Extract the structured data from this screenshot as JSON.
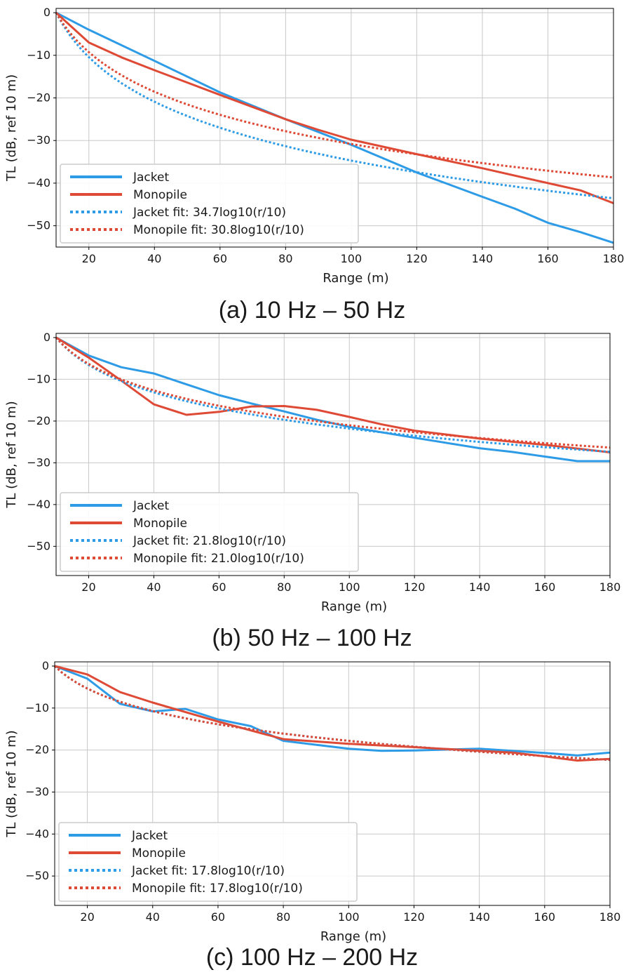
{
  "colors": {
    "jacket": "#2e9be6",
    "monopile": "#de4a35",
    "grid": "#c8c8c8",
    "axes": "#000000"
  },
  "chart_data": [
    {
      "type": "line",
      "caption": "(a) 10 Hz – 50 Hz",
      "xlabel": "Range (m)",
      "ylabel": "TL (dB, ref 10 m)",
      "xlim": [
        10,
        180
      ],
      "ylim": [
        -55,
        1
      ],
      "xticks": [
        20,
        40,
        60,
        80,
        100,
        120,
        140,
        160,
        180
      ],
      "yticks": [
        0,
        -10,
        -20,
        -30,
        -40,
        -50
      ],
      "grid": true,
      "legend_position": "lower-left",
      "series": [
        {
          "name": "Jacket",
          "style": "solid",
          "color": "#2e9be6",
          "x": [
            10,
            20,
            40,
            60,
            80,
            100,
            120,
            140,
            150,
            160,
            170,
            180
          ],
          "y": [
            0,
            -4,
            -11.3,
            -18.7,
            -25,
            -31,
            -37.5,
            -43.2,
            -46,
            -49.3,
            -51.5,
            -54
          ]
        },
        {
          "name": "Monopile",
          "style": "solid",
          "color": "#de4a35",
          "x": [
            10,
            20,
            30,
            40,
            60,
            80,
            90,
            100,
            120,
            140,
            160,
            170,
            180
          ],
          "y": [
            0,
            -7,
            -10.5,
            -13.5,
            -19.3,
            -25,
            -27.5,
            -29.8,
            -33.2,
            -36.5,
            -40,
            -41.7,
            -44.7
          ]
        },
        {
          "name": "Jacket fit: 34.7log10(r/10)",
          "style": "dotted",
          "color": "#2e9be6",
          "coefficient": 34.7
        },
        {
          "name": "Monopile fit: 30.8log10(r/10)",
          "style": "dotted",
          "color": "#de4a35",
          "coefficient": 30.8
        }
      ]
    },
    {
      "type": "line",
      "caption": "(b) 50 Hz – 100 Hz",
      "xlabel": "Range (m)",
      "ylabel": "TL (dB, ref 10 m)",
      "xlim": [
        10,
        180
      ],
      "ylim": [
        -57,
        1
      ],
      "xticks": [
        20,
        40,
        60,
        80,
        100,
        120,
        140,
        160,
        180
      ],
      "yticks": [
        0,
        -10,
        -20,
        -30,
        -40,
        -50
      ],
      "grid": true,
      "legend_position": "lower-left",
      "series": [
        {
          "name": "Jacket",
          "style": "solid",
          "color": "#2e9be6",
          "x": [
            10,
            20,
            30,
            40,
            50,
            60,
            70,
            80,
            90,
            100,
            120,
            140,
            150,
            160,
            170,
            180
          ],
          "y": [
            0,
            -4.3,
            -7.1,
            -8.6,
            -11.2,
            -13.8,
            -15.8,
            -17.7,
            -19.7,
            -21.4,
            -24,
            -26.5,
            -27.4,
            -28.5,
            -29.6,
            -29.6
          ]
        },
        {
          "name": "Monopile",
          "style": "solid",
          "color": "#de4a35",
          "x": [
            10,
            20,
            30,
            40,
            50,
            60,
            70,
            80,
            90,
            100,
            110,
            120,
            140,
            160,
            180
          ],
          "y": [
            0,
            -4.8,
            -10.3,
            -16,
            -18.5,
            -17.8,
            -16.5,
            -16.4,
            -17.3,
            -19,
            -20.8,
            -22.3,
            -24.2,
            -25.7,
            -27.5
          ]
        },
        {
          "name": "Jacket fit: 21.8log10(r/10)",
          "style": "dotted",
          "color": "#2e9be6",
          "coefficient": 21.8
        },
        {
          "name": "Monopile fit: 21.0log10(r/10)",
          "style": "dotted",
          "color": "#de4a35",
          "coefficient": 21.0
        }
      ]
    },
    {
      "type": "line",
      "caption": "(c) 100 Hz – 200 Hz",
      "xlabel": "Range (m)",
      "ylabel": "TL (dB, ref 10 m)",
      "xlim": [
        10,
        180
      ],
      "ylim": [
        -57,
        1
      ],
      "xticks": [
        20,
        40,
        60,
        80,
        100,
        120,
        140,
        160,
        180
      ],
      "yticks": [
        0,
        -10,
        -20,
        -30,
        -40,
        -50
      ],
      "grid": true,
      "legend_position": "lower-left",
      "series": [
        {
          "name": "Jacket",
          "style": "solid",
          "color": "#2e9be6",
          "x": [
            10,
            20,
            30,
            40,
            50,
            60,
            70,
            80,
            100,
            110,
            120,
            140,
            160,
            170,
            180
          ],
          "y": [
            0,
            -3,
            -9,
            -10.8,
            -10.2,
            -12.7,
            -14.3,
            -17.8,
            -19.7,
            -20.2,
            -20.1,
            -19.7,
            -20.7,
            -21.3,
            -20.6
          ]
        },
        {
          "name": "Monopile",
          "style": "solid",
          "color": "#de4a35",
          "x": [
            10,
            20,
            30,
            40,
            60,
            80,
            100,
            120,
            140,
            150,
            160,
            170,
            180
          ],
          "y": [
            0,
            -2,
            -6.2,
            -8.7,
            -13.2,
            -17.4,
            -18.5,
            -19.3,
            -20.2,
            -20.6,
            -21.5,
            -22.5,
            -22.1
          ]
        },
        {
          "name": "Jacket fit: 17.8log10(r/10)",
          "style": "dotted",
          "color": "#2e9be6",
          "coefficient": 17.8
        },
        {
          "name": "Monopile fit: 17.8log10(r/10)",
          "style": "dotted",
          "color": "#de4a35",
          "coefficient": 17.8
        }
      ]
    }
  ]
}
